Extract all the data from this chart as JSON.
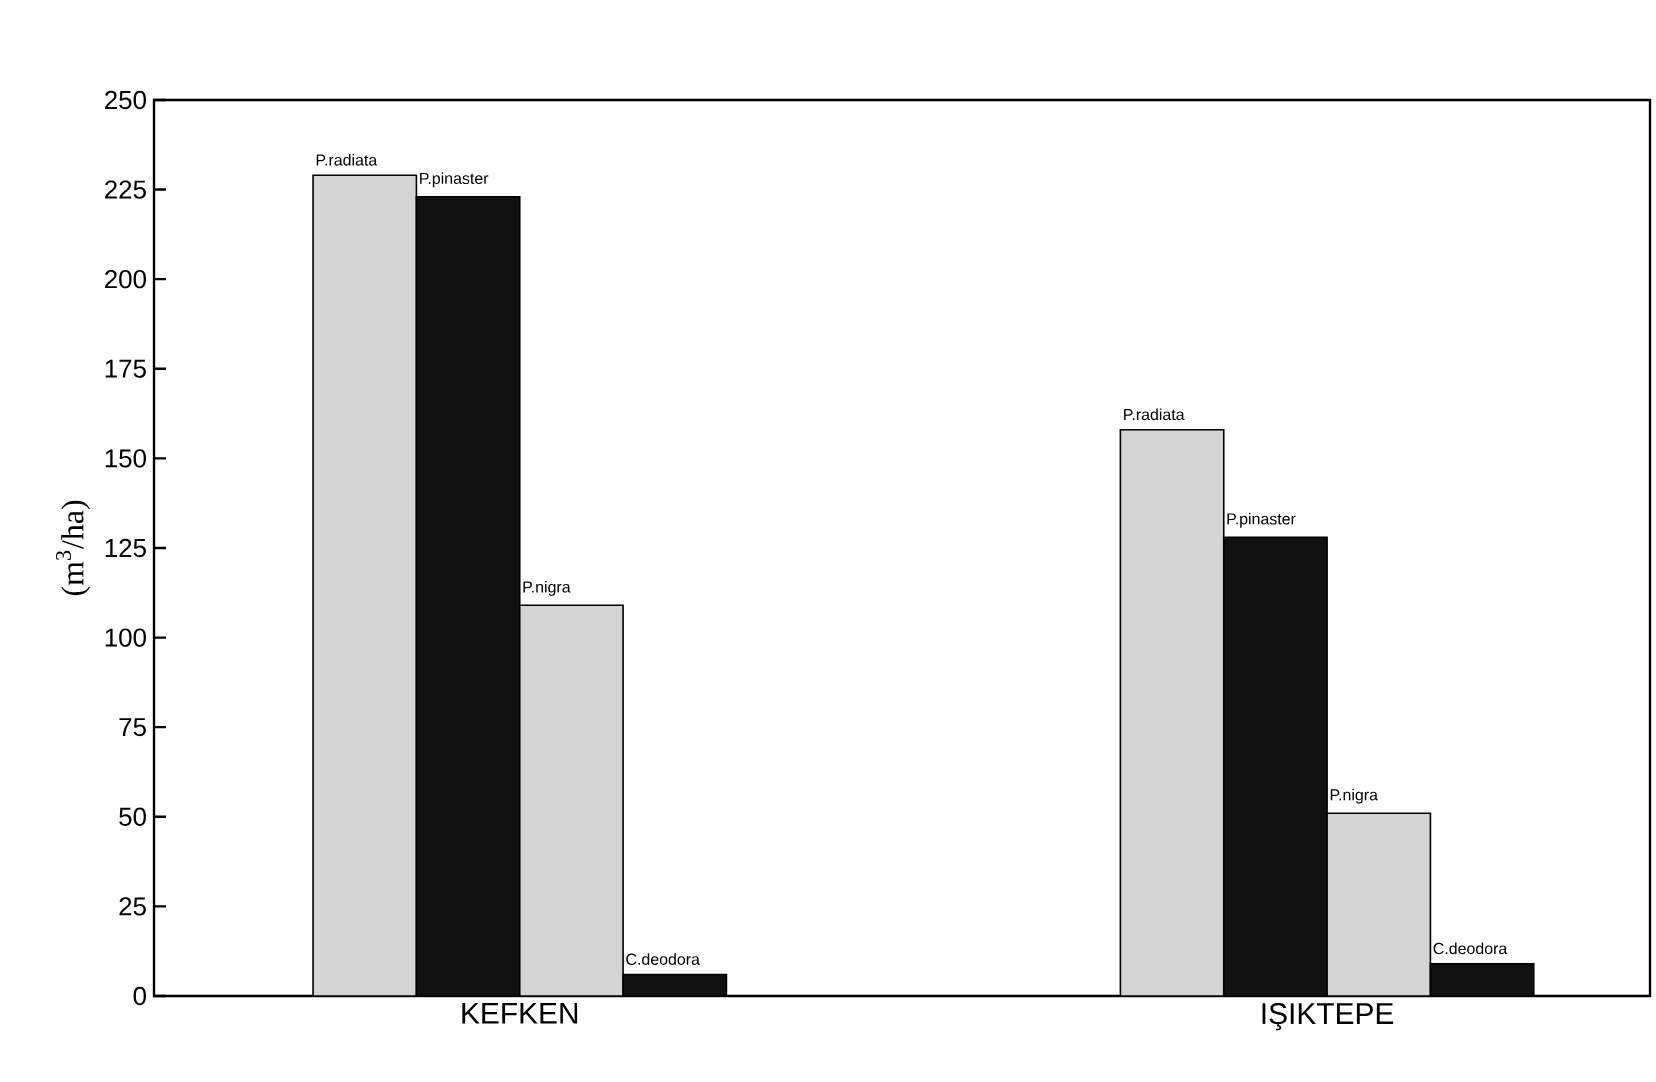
{
  "chart_data": {
    "type": "bar",
    "ylabel": "(m$^{3}$/ha)",
    "categories": [
      "KEFKEN",
      "IŞIKTEPE"
    ],
    "series": [
      {
        "name": "P.radiata",
        "color": "#d4d4d4",
        "values": [
          229,
          158
        ]
      },
      {
        "name": "P.pinaster",
        "color": "#111111",
        "values": [
          223,
          128
        ]
      },
      {
        "name": "P.nigra",
        "color": "#d4d4d4",
        "values": [
          109,
          51
        ]
      },
      {
        "name": "C.deodora",
        "color": "#111111",
        "values": [
          6,
          9
        ]
      }
    ],
    "ylim": [
      0,
      250
    ],
    "yticks": [
      0,
      25,
      50,
      75,
      100,
      125,
      150,
      175,
      200,
      225,
      250
    ],
    "grid": false,
    "legend": false
  }
}
